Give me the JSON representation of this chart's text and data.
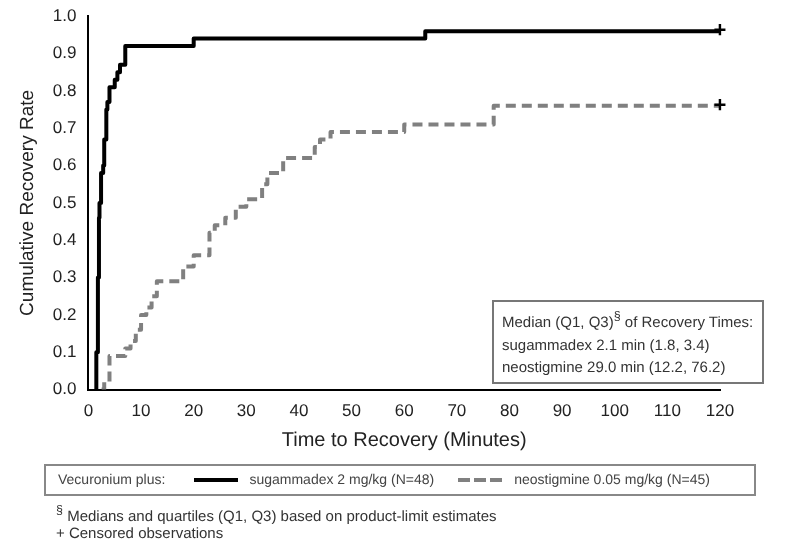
{
  "chart_data": {
    "type": "step",
    "xlabel": "Time to Recovery (Minutes)",
    "ylabel": "Cumulative Recovery Rate",
    "legend_title": "Vecuronium plus:",
    "legend": "bottom",
    "xlim": [
      0,
      120
    ],
    "xticks": [
      0,
      10,
      20,
      30,
      40,
      50,
      60,
      70,
      80,
      90,
      100,
      110,
      120
    ],
    "ylim": [
      0,
      1
    ],
    "yticks": [
      {
        "value": 0,
        "label": "0.0"
      },
      0.1,
      0.2,
      0.3,
      0.4,
      0.5,
      0.6,
      0.7,
      0.8,
      0.9,
      {
        "value": 1,
        "label": "1.0"
      }
    ],
    "grid": false,
    "series": [
      {
        "name": "sugammadex 2 mg/kg (N=48)",
        "color": "#000000",
        "line_style": "solid",
        "x": [
          1.2,
          1.5,
          1.8,
          2,
          2.1,
          2.4,
          2.8,
          3,
          3.4,
          3.6,
          4,
          5,
          5.5,
          6,
          7,
          20,
          64,
          120
        ],
        "values": [
          0,
          0.1,
          0.3,
          0.46,
          0.5,
          0.58,
          0.6,
          0.67,
          0.75,
          0.77,
          0.81,
          0.83,
          0.85,
          0.87,
          0.92,
          0.94,
          0.96,
          0.96
        ]
      },
      {
        "name": "neostigmine 0.05 mg/kg (N=45)",
        "color": "#808080",
        "line_style": "dashed",
        "x": [
          2.5,
          3,
          4,
          6,
          7,
          8,
          9,
          10,
          11,
          12,
          13,
          17,
          18,
          20,
          22,
          23,
          24,
          26,
          28,
          30,
          32,
          33,
          34,
          36,
          37,
          42,
          43,
          44,
          46,
          59,
          60,
          76,
          77,
          120
        ],
        "values": [
          0,
          0.02,
          0.09,
          0.09,
          0.11,
          0.13,
          0.16,
          0.2,
          0.22,
          0.25,
          0.29,
          0.29,
          0.33,
          0.36,
          0.36,
          0.42,
          0.44,
          0.46,
          0.49,
          0.51,
          0.51,
          0.55,
          0.58,
          0.58,
          0.62,
          0.62,
          0.65,
          0.67,
          0.69,
          0.69,
          0.71,
          0.71,
          0.76,
          0.76
        ]
      }
    ],
    "annotations": [
      "Median (Q1, Q3)$^{§}$ of Recovery Times:\nsugammadex 2.1 min (1.8, 3.4)\nneostigmine 29.0 min (12.2, 76.2)",
      "$^{§}$ Medians and quartiles (Q1, Q3) based on product-limit estimates",
      "+ Censored observations",
      {
        "text": "+",
        "x": 120,
        "y": 0.96
      },
      {
        "text": "+",
        "x": 120,
        "y": 0.76
      }
    ]
  }
}
